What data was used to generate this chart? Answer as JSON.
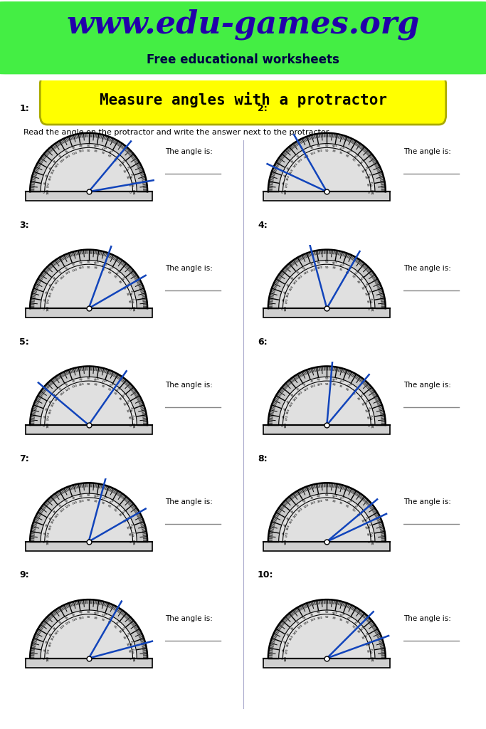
{
  "title": "Measure angles with a protractor",
  "website": "www.edu-games.org",
  "subtitle": "Free educational worksheets",
  "instruction": "Read the angle on the protractor and write the answer next to the protractor.",
  "bg_header": "#44ee44",
  "header_text_color": "#2200aa",
  "title_bg": "#ffff00",
  "border_color": "#3333cc",
  "problems": [
    {
      "num": "1:",
      "angles": [
        50,
        10
      ]
    },
    {
      "num": "2:",
      "angles": [
        120,
        155
      ]
    },
    {
      "num": "3:",
      "angles": [
        70,
        30
      ]
    },
    {
      "num": "4:",
      "angles": [
        105,
        60
      ]
    },
    {
      "num": "5:",
      "angles": [
        140,
        55
      ]
    },
    {
      "num": "6:",
      "angles": [
        85,
        50
      ]
    },
    {
      "num": "7:",
      "angles": [
        75,
        30
      ]
    },
    {
      "num": "8:",
      "angles": [
        40,
        25
      ]
    },
    {
      "num": "9:",
      "angles": [
        60,
        15
      ]
    },
    {
      "num": "10:",
      "angles": [
        45,
        20
      ]
    }
  ]
}
